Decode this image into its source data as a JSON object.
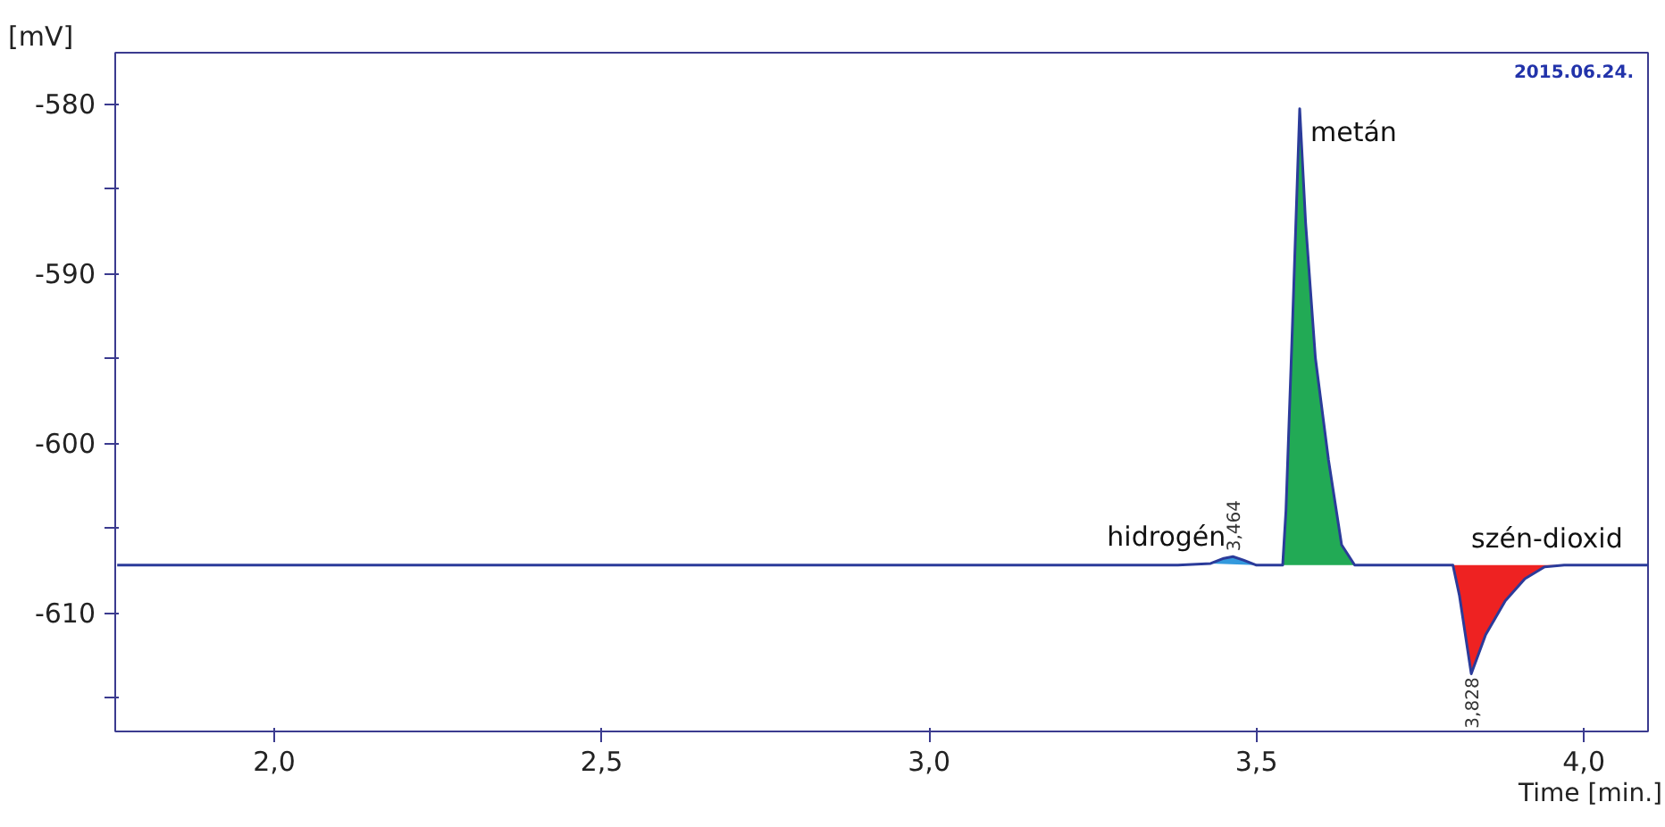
{
  "chart_data": {
    "type": "line",
    "xlabel": "Time [min.]",
    "ylabel": "[mV]",
    "xlim": [
      1.757,
      4.098
    ],
    "ylim": [
      -617,
      -577
    ],
    "xticks": [
      {
        "value": 2.0,
        "label": "2,0"
      },
      {
        "value": 2.5,
        "label": "2,5"
      },
      {
        "value": 3.0,
        "label": "3,0"
      },
      {
        "value": 3.5,
        "label": "3,5"
      },
      {
        "value": 4.0,
        "label": "4,0"
      }
    ],
    "yticks": [
      -580,
      {
        "value": -585,
        "label": null
      },
      -590,
      {
        "value": -595,
        "label": null
      },
      -600,
      {
        "value": -605,
        "label": null
      },
      -610,
      {
        "value": -615,
        "label": null
      }
    ],
    "grid": false,
    "legend": false,
    "series": [
      {
        "color": "#2b3b9a",
        "x": [
          1.76,
          2.0,
          2.5,
          3.0,
          3.38,
          3.43,
          3.45,
          3.464,
          3.48,
          3.5,
          3.53,
          3.54,
          3.545,
          3.555,
          3.566,
          3.575,
          3.59,
          3.61,
          3.63,
          3.65,
          3.7,
          3.8,
          3.81,
          3.828,
          3.85,
          3.88,
          3.91,
          3.94,
          3.97,
          4.0,
          4.098
        ],
        "values": [
          -607.2,
          -607.2,
          -607.2,
          -607.2,
          -607.2,
          -607.1,
          -606.8,
          -606.7,
          -606.9,
          -607.2,
          -607.2,
          -607.2,
          -604,
          -593,
          -580.3,
          -587,
          -595,
          -601,
          -606,
          -607.2,
          -607.2,
          -607.2,
          -609,
          -613.6,
          -611.3,
          -609.3,
          -608,
          -607.3,
          -607.2,
          -607.2,
          -607.2
        ]
      },
      {
        "type": "area",
        "name": "hidrogén",
        "color": "#3399dd",
        "x": [
          3.43,
          3.45,
          3.464,
          3.48,
          3.5
        ],
        "values": [
          -607.1,
          -606.8,
          -606.7,
          -606.9,
          -607.2
        ]
      },
      {
        "type": "area",
        "name": "metán",
        "color": "#22aa55",
        "x": [
          3.54,
          3.545,
          3.555,
          3.566,
          3.575,
          3.59,
          3.61,
          3.63,
          3.65
        ],
        "values": [
          -607.2,
          -604,
          -593,
          -580.3,
          -587,
          -595,
          -601,
          -606,
          -607.2
        ]
      },
      {
        "type": "area",
        "name": "szén-dioxid",
        "color": "#ee2222",
        "x": [
          3.8,
          3.81,
          3.828,
          3.85,
          3.88,
          3.91,
          3.94,
          3.97
        ],
        "values": [
          -607.2,
          -609,
          -613.6,
          -611.3,
          -609.3,
          -608,
          -607.3,
          -607.2
        ]
      }
    ],
    "annotations": [
      {
        "text": "3,464",
        "x": 3.464,
        "y": -606.7
      },
      {
        "text": "3,828",
        "x": 3.828,
        "y": -613.6
      },
      "2015.06.24."
    ]
  }
}
